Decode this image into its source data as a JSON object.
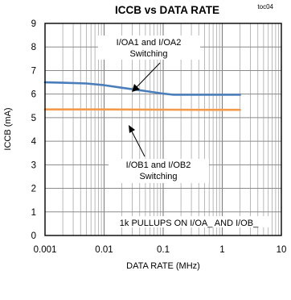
{
  "chart_data": {
    "type": "line",
    "title": "ICCB vs DATA RATE",
    "tag": "toc04",
    "xlabel": "DATA RATE (MHz)",
    "ylabel": "ICCB (mA)",
    "x_scale": "log",
    "xlim": [
      0.001,
      10
    ],
    "ylim": [
      0,
      9
    ],
    "x_ticks": [
      "0.001",
      "0.01",
      "0.1",
      "1",
      "10"
    ],
    "y_ticks": [
      "0",
      "1",
      "2",
      "3",
      "4",
      "5",
      "6",
      "7",
      "8",
      "9"
    ],
    "grid": true,
    "series": [
      {
        "color": "#4a7ebb",
        "x": [
          0.001,
          0.002,
          0.005,
          0.01,
          0.02,
          0.05,
          0.1,
          0.15,
          0.3,
          1,
          2
        ],
        "y": [
          6.5,
          6.48,
          6.45,
          6.38,
          6.27,
          6.13,
          6.02,
          5.97,
          5.97,
          5.97,
          5.97
        ]
      },
      {
        "color": "#f39a4a",
        "x": [
          0.001,
          0.01,
          0.1,
          1,
          2
        ],
        "y": [
          5.35,
          5.35,
          5.34,
          5.33,
          5.33
        ]
      }
    ],
    "annotations": [
      {
        "lines": [
          "I/OA1 and I/OA2",
          "Switching"
        ]
      },
      {
        "lines": [
          "I/OB1 and I/OB2",
          "Switching"
        ]
      },
      {
        "lines": [
          "1k   PULLUPS ON I/OA_ AND I/OB_"
        ]
      }
    ]
  }
}
